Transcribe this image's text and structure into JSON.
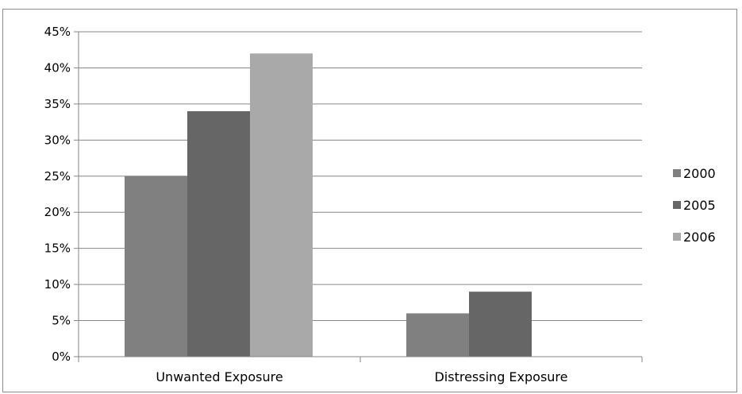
{
  "chart_data": {
    "type": "bar",
    "title": "",
    "xlabel": "",
    "ylabel": "",
    "categories": [
      "Unwanted Exposure",
      "Distressing Exposure"
    ],
    "series": [
      {
        "name": "2000",
        "values": [
          25,
          6
        ],
        "color": "#808080"
      },
      {
        "name": "2005",
        "values": [
          34,
          9
        ],
        "color": "#666666"
      },
      {
        "name": "2006",
        "values": [
          42,
          0
        ],
        "color": "#a9a9a9"
      }
    ],
    "ylim": [
      0,
      45
    ],
    "y_ticks": [
      "0%",
      "5%",
      "10%",
      "15%",
      "20%",
      "25%",
      "30%",
      "35%",
      "40%",
      "45%"
    ],
    "grid": true,
    "legend_position": "right"
  }
}
